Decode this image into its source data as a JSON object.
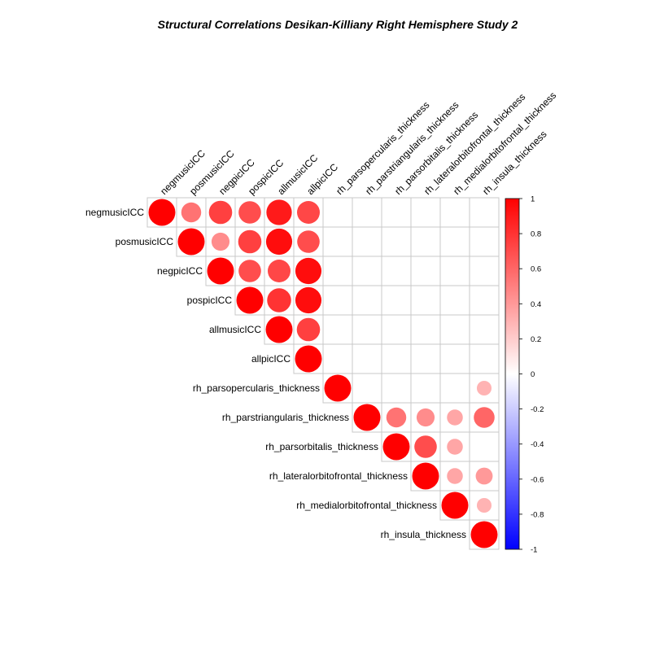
{
  "chart_data": {
    "type": "heatmap",
    "subtype": "correlation-circles-upper-triangle",
    "title": "Structural Correlations Desikan-Killiany Right Hemisphere Study 2",
    "variables": [
      "negmusicICC",
      "posmusicICC",
      "negpicICC",
      "pospicICC",
      "allmusicICC",
      "allpicICC",
      "rh_parsopercularis_thickness",
      "rh_parstriangularis_thickness",
      "rh_parsorbitalis_thickness",
      "rh_lateralorbitofrontal_thickness",
      "rh_medialorbitofrontal_thickness",
      "rh_insula_thickness"
    ],
    "matrix": [
      [
        1.0,
        0.55,
        0.75,
        0.7,
        0.9,
        0.72,
        null,
        null,
        null,
        null,
        null,
        null
      ],
      [
        null,
        1.0,
        0.45,
        0.75,
        0.95,
        0.7,
        null,
        null,
        null,
        null,
        null,
        null
      ],
      [
        null,
        null,
        1.0,
        0.7,
        0.72,
        0.95,
        null,
        null,
        null,
        null,
        null,
        null
      ],
      [
        null,
        null,
        null,
        1.0,
        0.8,
        0.95,
        null,
        null,
        null,
        null,
        null,
        null
      ],
      [
        null,
        null,
        null,
        null,
        1.0,
        0.75,
        null,
        null,
        null,
        null,
        null,
        null
      ],
      [
        null,
        null,
        null,
        null,
        null,
        1.0,
        null,
        null,
        null,
        null,
        null,
        null
      ],
      [
        null,
        null,
        null,
        null,
        null,
        null,
        1.0,
        null,
        null,
        null,
        null,
        0.3
      ],
      [
        null,
        null,
        null,
        null,
        null,
        null,
        null,
        1.0,
        0.55,
        0.45,
        0.35,
        0.6
      ],
      [
        null,
        null,
        null,
        null,
        null,
        null,
        null,
        null,
        1.0,
        0.7,
        0.35,
        null
      ],
      [
        null,
        null,
        null,
        null,
        null,
        null,
        null,
        null,
        null,
        1.0,
        0.35,
        0.4
      ],
      [
        null,
        null,
        null,
        null,
        null,
        null,
        null,
        null,
        null,
        null,
        1.0,
        0.3
      ],
      [
        null,
        null,
        null,
        null,
        null,
        null,
        null,
        null,
        null,
        null,
        null,
        1.0
      ]
    ],
    "colorbar": {
      "range": [
        -1,
        1
      ],
      "ticks": [
        1,
        0.8,
        0.6,
        0.4,
        0.2,
        0,
        -0.2,
        -0.4,
        -0.6,
        -0.8,
        -1
      ],
      "colors": {
        "positive": "#ff0000",
        "zero": "#ffffff",
        "negative": "#0000ff"
      }
    },
    "grid": true
  }
}
